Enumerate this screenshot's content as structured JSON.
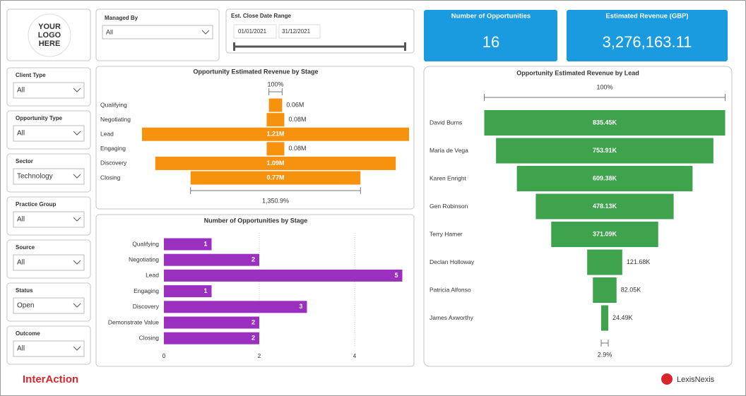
{
  "logo": [
    "YOUR",
    "LOGO",
    "HERE"
  ],
  "managed_by": {
    "label": "Managed By",
    "value": "All"
  },
  "date_range": {
    "label": "Est. Close Date Range",
    "start": "01/01/2021",
    "end": "31/12/2021"
  },
  "cards": [
    {
      "title": "Number of Opportunities",
      "value": 16
    },
    {
      "title": "Estimated Revenue (GBP)",
      "value": "3,276,163.11"
    }
  ],
  "filters": [
    {
      "label": "Client Type",
      "value": "All"
    },
    {
      "label": "Opportunity Type",
      "value": "All"
    },
    {
      "label": "Sector",
      "value": "Technology"
    },
    {
      "label": "Practice Group",
      "value": "All"
    },
    {
      "label": "Source",
      "value": "All"
    },
    {
      "label": "Status",
      "value": "Open"
    },
    {
      "label": "Outcome",
      "value": "All"
    }
  ],
  "chart_data": [
    {
      "type": "funnel",
      "title": "Opportunity Estimated Revenue by Stage",
      "categories": [
        "Qualifying",
        "Negotiating",
        "Lead",
        "Engaging",
        "Discovery",
        "Closing"
      ],
      "values": [
        0.06,
        0.08,
        1.21,
        0.08,
        1.09,
        0.77
      ],
      "value_labels": [
        "0.06M",
        "0.08M",
        "1.21M",
        "0.08M",
        "1.09M",
        "0.77M"
      ],
      "color": "#f7920f",
      "top_label": "100%",
      "bottom_label": "1,350.9%"
    },
    {
      "type": "bar",
      "title": "Number of Opportunities by Stage",
      "categories": [
        "Qualifying",
        "Negotiating",
        "Lead",
        "Engaging",
        "Discovery",
        "Demonstrate Value",
        "Closing"
      ],
      "values": [
        1,
        2,
        5,
        1,
        3,
        2,
        2
      ],
      "color": "#9b2fc0",
      "xlim": [
        0,
        5.1
      ],
      "xticks": [
        0,
        2,
        4
      ],
      "grid": true
    },
    {
      "type": "funnel",
      "title": "Opportunity Estimated Revenue by Lead",
      "categories": [
        "David Burns",
        "Maria de Vega",
        "Karen Enright",
        "Gen Robinson",
        "Terry Hamer",
        "Declan Holloway",
        "Patricia Alfonso",
        "James Axworthy"
      ],
      "values": [
        835.45,
        753.91,
        609.38,
        478.13,
        371.09,
        121.68,
        82.05,
        24.49
      ],
      "value_labels": [
        "835.45K",
        "753.91K",
        "609.38K",
        "478.13K",
        "371.09K",
        "121.68K",
        "82.05K",
        "24.49K"
      ],
      "color": "#3fa34d",
      "top_label": "100%",
      "bottom_label": "2.9%"
    }
  ],
  "footer": {
    "brand": "InterAction",
    "partner": "LexisNexis"
  }
}
